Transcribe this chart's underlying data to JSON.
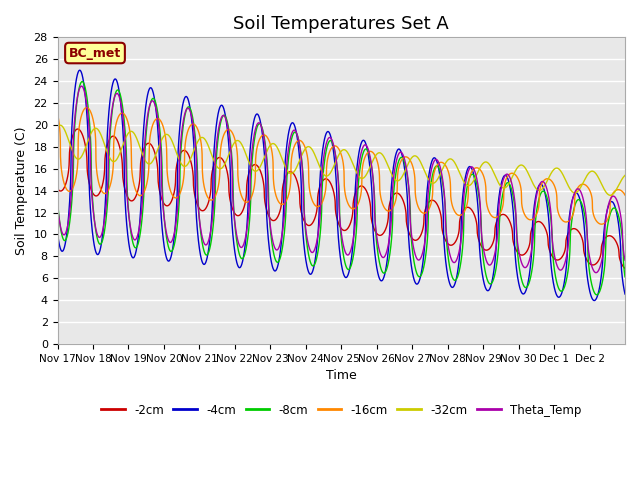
{
  "title": "Soil Temperatures Set A",
  "xlabel": "Time",
  "ylabel": "Soil Temperature (C)",
  "ylim": [
    0,
    28
  ],
  "bg_color": "#e8e8e8",
  "annotation": "BC_met",
  "annotation_color": "#8b0000",
  "annotation_bg": "#ffff99",
  "series": [
    {
      "label": "-2cm",
      "color": "#cc0000"
    },
    {
      "label": "-4cm",
      "color": "#0000cc"
    },
    {
      "label": "-8cm",
      "color": "#00cc00"
    },
    {
      "label": "-16cm",
      "color": "#ff8800"
    },
    {
      "label": "-32cm",
      "color": "#cccc00"
    },
    {
      "label": "Theta_Temp",
      "color": "#aa00aa"
    }
  ],
  "xtick_labels": [
    "Nov 17",
    "Nov 18",
    "Nov 19",
    "Nov 20",
    "Nov 21",
    "Nov 22",
    "Nov 23",
    "Nov 24",
    "Nov 25",
    "Nov 26",
    "Nov 27",
    "Nov 28",
    "Nov 29",
    "Nov 30",
    "Dec 1",
    "Dec 2"
  ],
  "xtick_positions": [
    0,
    1,
    2,
    3,
    4,
    5,
    6,
    7,
    8,
    9,
    10,
    11,
    12,
    13,
    14,
    15
  ],
  "ytick_positions": [
    0,
    2,
    4,
    6,
    8,
    10,
    12,
    14,
    16,
    18,
    20,
    22,
    24,
    26,
    28
  ],
  "grid_color": "#ffffff",
  "title_fontsize": 13
}
